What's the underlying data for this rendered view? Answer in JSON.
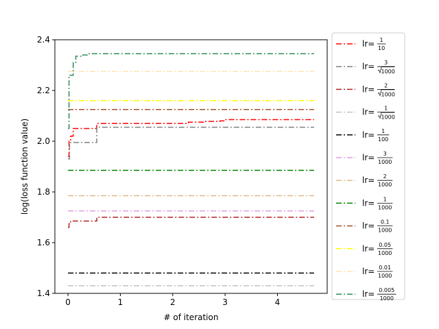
{
  "chart_data": {
    "type": "line",
    "xlabel": "# of iteration",
    "ylabel": "log(loss function value)",
    "xlim": [
      -0.25,
      4.95
    ],
    "ylim": [
      1.4,
      2.4
    ],
    "xticks": [
      0,
      1,
      2,
      3,
      4
    ],
    "yticks": [
      1.4,
      1.6,
      1.8,
      2.0,
      2.2,
      2.4
    ],
    "xtick_labels": [
      "0",
      "1",
      "2",
      "3",
      "4"
    ],
    "ytick_labels": [
      "1.4",
      "1.6",
      "1.8",
      "2.0",
      "2.2",
      "2.4"
    ],
    "legend_position": "outside right",
    "line_style": "dash-dot",
    "series": [
      {
        "name": "lr=1/10",
        "prefix": "lr=",
        "num": "1",
        "den": "10",
        "sqrt": false,
        "color": "#ff0000",
        "x": [
          0,
          0.02,
          0.05,
          0.1,
          0.55,
          2.3,
          2.6,
          2.9,
          3.0,
          4.7
        ],
        "y": [
          1.94,
          2.0,
          2.02,
          2.05,
          2.07,
          2.075,
          2.078,
          2.08,
          2.085,
          2.085
        ]
      },
      {
        "name": "lr=3/sqrt(1000)",
        "prefix": "lr=",
        "num": "3",
        "den": "1000",
        "sqrt": true,
        "color": "#808080",
        "x": [
          0,
          0.03,
          0.55,
          4.7
        ],
        "y": [
          1.93,
          1.995,
          2.055,
          2.055
        ]
      },
      {
        "name": "lr=2/sqrt(1000)",
        "prefix": "lr=",
        "num": "2",
        "den": "1000",
        "sqrt": true,
        "color": "#b22222",
        "x": [
          0,
          0.02,
          0.05,
          0.55,
          4.7
        ],
        "y": [
          1.66,
          1.675,
          1.685,
          1.7,
          1.7
        ]
      },
      {
        "name": "lr=1/sqrt(1000)",
        "prefix": "lr=",
        "num": "1",
        "den": "1000",
        "sqrt": true,
        "color": "#c0c0c0",
        "x": [
          0,
          4.7
        ],
        "y": [
          1.43,
          1.43
        ]
      },
      {
        "name": "lr=1/100",
        "prefix": "lr=",
        "num": "1",
        "den": "100",
        "sqrt": false,
        "color": "#000000",
        "x": [
          0,
          4.7
        ],
        "y": [
          1.48,
          1.48
        ]
      },
      {
        "name": "lr=3/1000",
        "prefix": "lr=",
        "num": "3",
        "den": "1000",
        "sqrt": false,
        "color": "#dda0dd",
        "x": [
          0,
          4.7
        ],
        "y": [
          1.725,
          1.725
        ]
      },
      {
        "name": "lr=2/1000",
        "prefix": "lr=",
        "num": "2",
        "den": "1000",
        "sqrt": false,
        "color": "#deb887",
        "x": [
          0,
          4.7
        ],
        "y": [
          1.785,
          1.785
        ]
      },
      {
        "name": "lr=1/1000",
        "prefix": "lr=",
        "num": "1",
        "den": "1000",
        "sqrt": false,
        "color": "#008000",
        "x": [
          0,
          4.7
        ],
        "y": [
          1.885,
          1.885
        ]
      },
      {
        "name": "lr=0.1/1000",
        "prefix": "lr=",
        "num": "0.1",
        "den": "1000",
        "sqrt": false,
        "color": "#a0522d",
        "x": [
          0,
          4.7
        ],
        "y": [
          2.125,
          2.125
        ]
      },
      {
        "name": "lr=0.05/1000",
        "prefix": "lr=",
        "num": "0.05",
        "den": "1000",
        "sqrt": false,
        "color": "#ffff00",
        "x": [
          0,
          4.7
        ],
        "y": [
          2.16,
          2.16
        ]
      },
      {
        "name": "lr=0.01/1000",
        "prefix": "lr=",
        "num": "0.01",
        "den": "1000",
        "sqrt": false,
        "color": "#ffe4b5",
        "x": [
          0,
          4.7
        ],
        "y": [
          2.275,
          2.275
        ]
      },
      {
        "name": "lr=0.005/1000",
        "prefix": "lr=",
        "num": "0.005",
        "den": "1000",
        "sqrt": false,
        "color": "#2e8b57",
        "x": [
          0,
          0.02,
          0.1,
          0.15,
          0.25,
          0.4,
          4.7
        ],
        "y": [
          2.05,
          2.26,
          2.31,
          2.335,
          2.34,
          2.345,
          2.345
        ]
      }
    ]
  }
}
